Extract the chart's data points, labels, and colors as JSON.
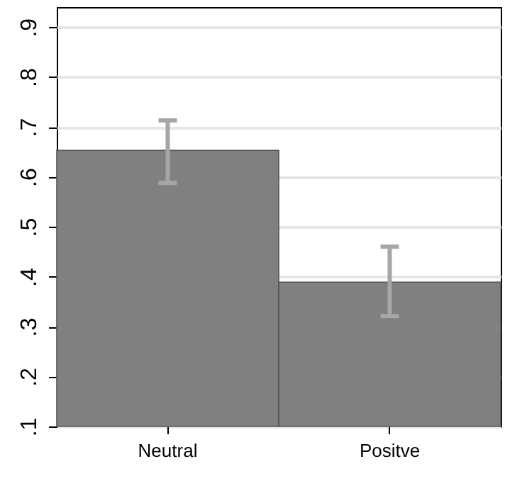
{
  "chart_data": {
    "type": "bar",
    "categories": [
      "Neutral",
      "Positve"
    ],
    "values": [
      0.653,
      0.389
    ],
    "errors": [
      [
        0.588,
        0.713
      ],
      [
        0.321,
        0.46
      ]
    ],
    "color": "#808080",
    "ylim": [
      0.1,
      0.94
    ],
    "yticks": [
      {
        "value": 0.1,
        "label": ".1"
      },
      {
        "value": 0.2,
        "label": ".2"
      },
      {
        "value": 0.3,
        "label": ".3"
      },
      {
        "value": 0.4,
        "label": ".4"
      },
      {
        "value": 0.5,
        "label": ".5"
      },
      {
        "value": 0.6,
        "label": ".6"
      },
      {
        "value": 0.7,
        "label": ".7"
      },
      {
        "value": 0.8,
        "label": ".8"
      },
      {
        "value": 0.9,
        "label": ".9"
      }
    ],
    "grid": "y"
  }
}
